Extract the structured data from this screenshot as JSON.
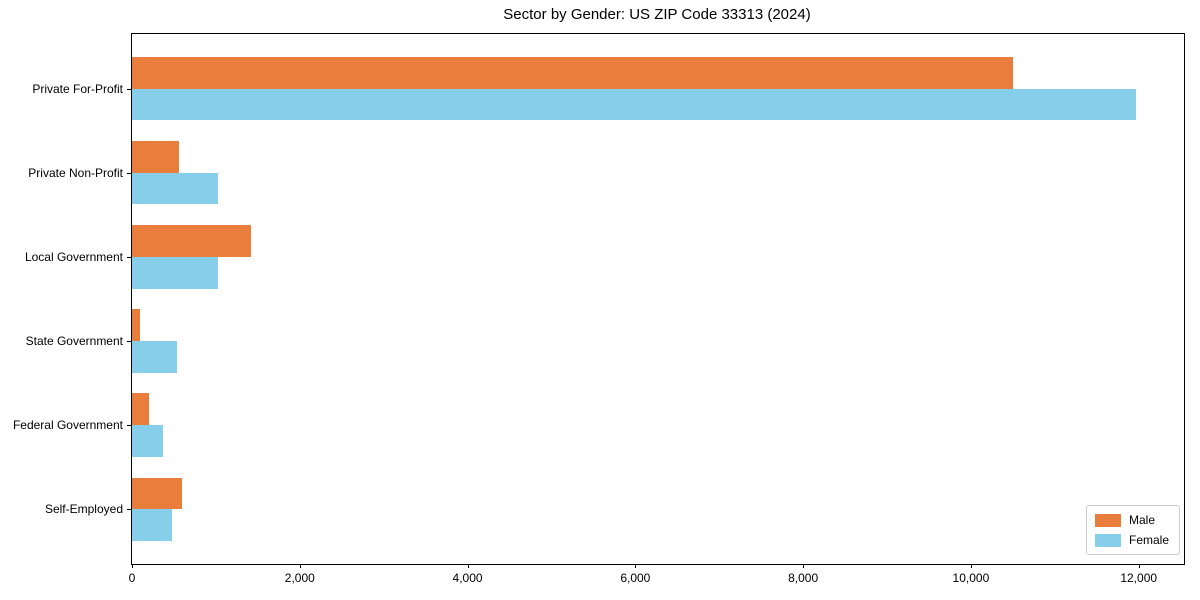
{
  "chart_data": {
    "type": "bar",
    "orientation": "horizontal",
    "title": "Sector by Gender: US ZIP Code 33313 (2024)",
    "categories": [
      "Private For-Profit",
      "Private Non-Profit",
      "Local Government",
      "State Government",
      "Federal Government",
      "Self-Employed"
    ],
    "series": [
      {
        "name": "Male",
        "color": "#e87d3c",
        "values": [
          10500,
          560,
          1420,
          95,
          205,
          595
        ]
      },
      {
        "name": "Female",
        "color": "#87ceeb",
        "values": [
          11970,
          1030,
          1030,
          535,
          375,
          475
        ]
      }
    ],
    "xlim": [
      0,
      12540
    ],
    "xticks": [
      0,
      2000,
      4000,
      6000,
      8000,
      10000,
      12000
    ],
    "xtick_labels": [
      "0",
      "2,000",
      "4,000",
      "6,000",
      "8,000",
      "10,000",
      "12,000"
    ],
    "ylabel": "",
    "xlabel": "",
    "grid": false,
    "legend_position": "lower right",
    "background_color": "#ffffff",
    "spine_color": "#000000"
  }
}
